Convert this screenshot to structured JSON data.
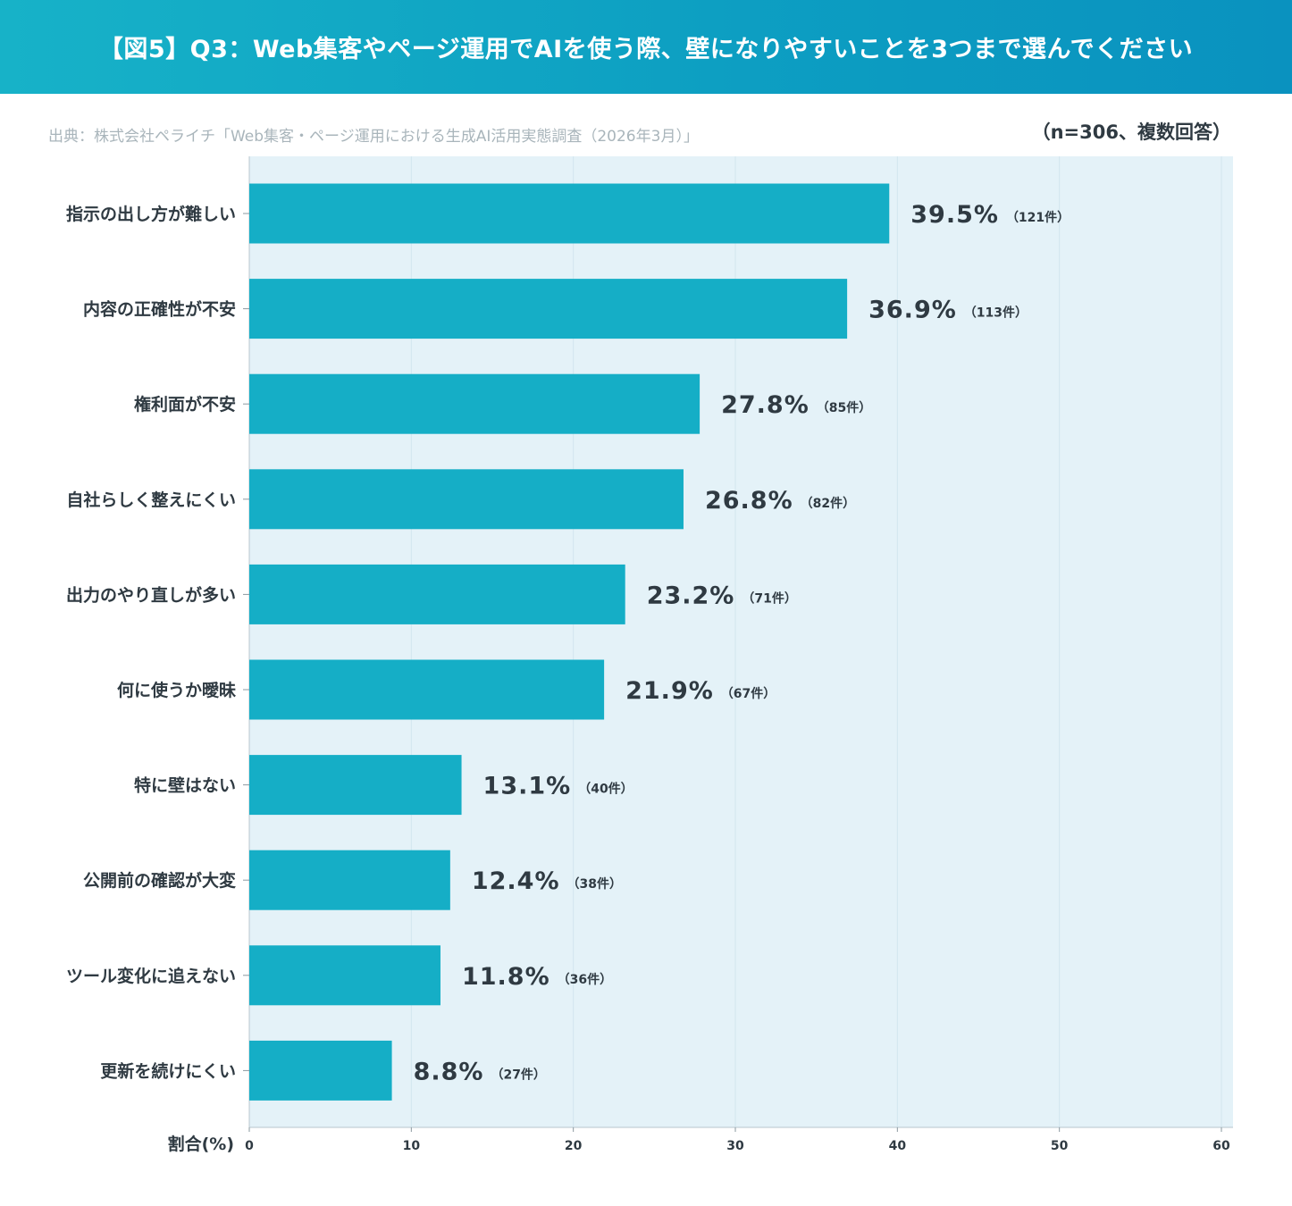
{
  "header": {
    "title": "【図5】Q3：Web集客やページ運用でAIを使う際、壁になりやすいことを3つまで選んでください"
  },
  "source": "出典：株式会社ペライチ「Web集客・ページ運用における生成AI活用実態調査（2026年3月）」",
  "sample_note": "（n=306、複数回答）",
  "colors": {
    "bar": "#15aec6",
    "plot_bg": "#e4f2f8",
    "gridline": "#d2e5ee",
    "header_start": "#17b2c8",
    "header_end": "#0a92bf",
    "text": "#2f3a42"
  },
  "chart_data": {
    "type": "bar",
    "orientation": "horizontal",
    "categories": [
      "指示の出し方が難しい",
      "内容の正確性が不安",
      "権利面が不安",
      "自社らしく整えにくい",
      "出力のやり直しが多い",
      "何に使うか曖昧",
      "特に壁はない",
      "公開前の確認が大変",
      "ツール変化に追えない",
      "更新を続けにくい"
    ],
    "values": [
      39.5,
      36.9,
      27.8,
      26.8,
      23.2,
      21.9,
      13.1,
      12.4,
      11.8,
      8.8
    ],
    "value_labels": [
      "39.5%",
      "36.9%",
      "27.8%",
      "26.8%",
      "23.2%",
      "21.9%",
      "13.1%",
      "12.4%",
      "11.8%",
      "8.8%"
    ],
    "count_labels": [
      "（121件）",
      "（113件）",
      "（85件）",
      "（82件）",
      "（71件）",
      "（67件）",
      "（40件）",
      "（38件）",
      "（36件）",
      "（27件）"
    ],
    "xlabel": "割合(%)",
    "xlim": [
      0,
      60
    ],
    "xticks": [
      0,
      10,
      20,
      30,
      40,
      50,
      60
    ],
    "grid": true
  }
}
